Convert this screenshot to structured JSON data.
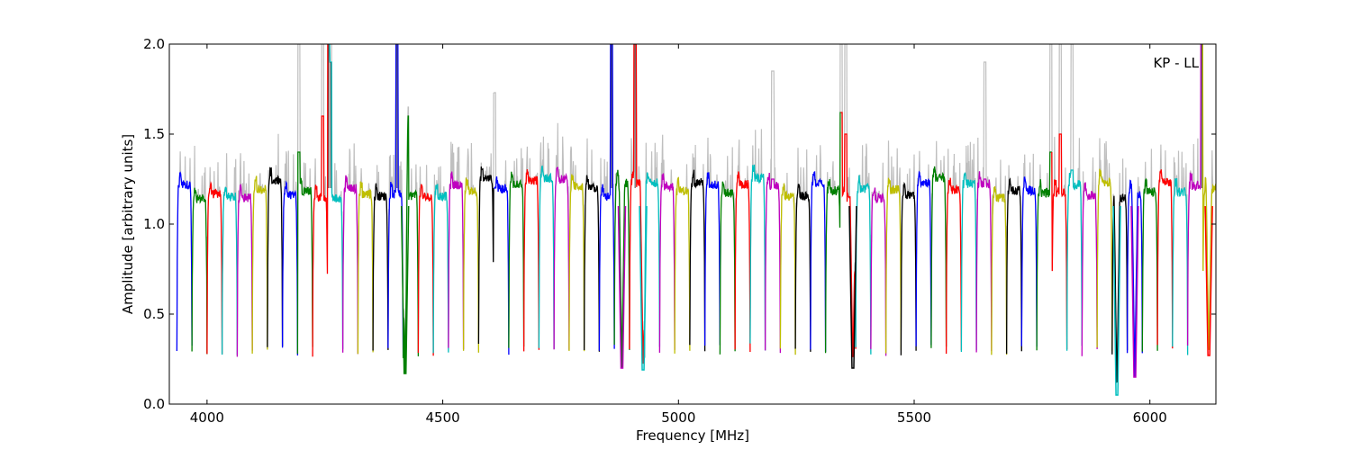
{
  "chart_data": {
    "type": "line",
    "title": "",
    "xlabel": "Frequency [MHz]",
    "ylabel": "Amplitude [arbitrary units]",
    "xlim": [
      3920,
      6140
    ],
    "ylim": [
      0.0,
      2.0
    ],
    "xticks": [
      4000,
      4500,
      5000,
      5500,
      6000
    ],
    "xtick_labels": [
      "4000",
      "4500",
      "5000",
      "5500",
      "6000"
    ],
    "yticks": [
      0.0,
      0.5,
      1.0,
      1.5,
      2.0
    ],
    "ytick_labels": [
      "0.0",
      "0.5",
      "1.0",
      "1.5",
      "2.0"
    ],
    "grid": false,
    "annotation": "KP - LL",
    "annotation_position": "top-right",
    "channel_width_mhz": 32,
    "channel_start_mhz": 3936,
    "channel_count": 69,
    "channel_level": 1.2,
    "channel_edge_level": 0.3,
    "channel_colors": [
      "#0000ff",
      "#008000",
      "#ff0000",
      "#00bfbf",
      "#bf00bf",
      "#bfbf00",
      "#000000"
    ],
    "raw_color": "#bfbfbf",
    "rfi_spikes": [
      {
        "freq": 4195,
        "raw": 2.0,
        "flagged": 1.4
      },
      {
        "freq": 4245,
        "raw": 2.0,
        "flagged": 1.6
      },
      {
        "freq": 4258,
        "raw": 2.0,
        "flagged": 2.0
      },
      {
        "freq": 4262,
        "raw": 2.0,
        "flagged": 1.9
      },
      {
        "freq": 4403,
        "raw": 2.0,
        "flagged": 2.0
      },
      {
        "freq": 4425,
        "raw": 1.65,
        "flagged": 1.6
      },
      {
        "freq": 4610,
        "raw": 1.73,
        "flagged": 1.2
      },
      {
        "freq": 4858,
        "raw": 2.0,
        "flagged": 2.0
      },
      {
        "freq": 4908,
        "raw": 2.0,
        "flagged": 2.0
      },
      {
        "freq": 5200,
        "raw": 1.85,
        "flagged": 1.25
      },
      {
        "freq": 5345,
        "raw": 2.0,
        "flagged": 1.62
      },
      {
        "freq": 5355,
        "raw": 2.0,
        "flagged": 1.5
      },
      {
        "freq": 5650,
        "raw": 1.9,
        "flagged": 1.25
      },
      {
        "freq": 5790,
        "raw": 2.0,
        "flagged": 1.4
      },
      {
        "freq": 5810,
        "raw": 2.0,
        "flagged": 1.5
      },
      {
        "freq": 5835,
        "raw": 2.0,
        "flagged": 1.3
      },
      {
        "freq": 6110,
        "raw": 2.0,
        "flagged": 2.0
      }
    ],
    "notches": [
      {
        "freq": 4420,
        "level": 0.17,
        "color": "#008000"
      },
      {
        "freq": 4880,
        "level": 0.2,
        "color": "#bf00bf"
      },
      {
        "freq": 4925,
        "level": 0.19,
        "color": "#00bfbf"
      },
      {
        "freq": 5370,
        "level": 0.2,
        "color": "#000000"
      },
      {
        "freq": 5930,
        "level": 0.05,
        "color": "#00bfbf"
      },
      {
        "freq": 5968,
        "level": 0.15,
        "color": "#bf00bf"
      },
      {
        "freq": 6125,
        "level": 0.27,
        "color": "#ff0000"
      }
    ]
  }
}
